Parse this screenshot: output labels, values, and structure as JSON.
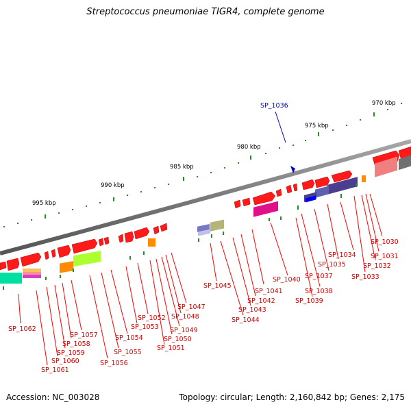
{
  "header": {
    "title": "Streptococcus pneumoniae TIGR4, complete genome"
  },
  "footer": {
    "accession": "Accession: NC_003028",
    "topology": "Topology: circular; Length: 2,160,842 bp; Genes: 2,175"
  },
  "scale": {
    "ticks": [
      "970 kbp",
      "975 kbp",
      "980 kbp",
      "985 kbp",
      "990 kbp",
      "995 kbp"
    ]
  },
  "highlight": {
    "label": "SP_1036"
  },
  "genes": [
    "SP_1030",
    "SP_1031",
    "SP_1032",
    "SP_1033",
    "SP_1034",
    "SP_1035",
    "SP_1037",
    "SP_1038",
    "SP_1039",
    "SP_1040",
    "SP_1041",
    "SP_1042",
    "SP_1043",
    "SP_1044",
    "SP_1045",
    "SP_1047",
    "SP_1048",
    "SP_1049",
    "SP_1050",
    "SP_1051",
    "SP_1052",
    "SP_1053",
    "SP_1054",
    "SP_1055",
    "SP_1056",
    "SP_1057",
    "SP_1058",
    "SP_1059",
    "SP_1060",
    "SP_1061",
    "SP_1062"
  ],
  "colors": {
    "gene_forward": "#ff0000",
    "label_line": "#ff0000",
    "highlight": "#0000cc",
    "backbone": "#808080",
    "tick": "#008000"
  }
}
